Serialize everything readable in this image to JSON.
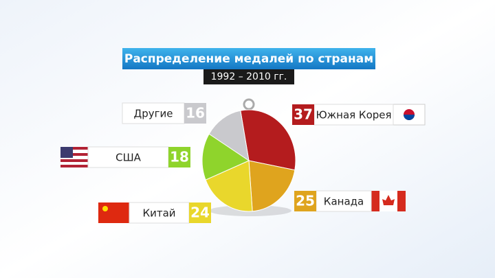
{
  "chart_data": {
    "type": "pie",
    "title": "Распределение медалей по странам",
    "subtitle": "1992 – 2010 гг.",
    "categories": [
      "Южная Корея",
      "Канада",
      "Китай",
      "США",
      "Другие"
    ],
    "values": [
      37,
      25,
      24,
      18,
      16
    ],
    "colors": [
      "#b41c1e",
      "#dfa41e",
      "#e9d72c",
      "#8fd42c",
      "#c9c9cd"
    ]
  }
}
